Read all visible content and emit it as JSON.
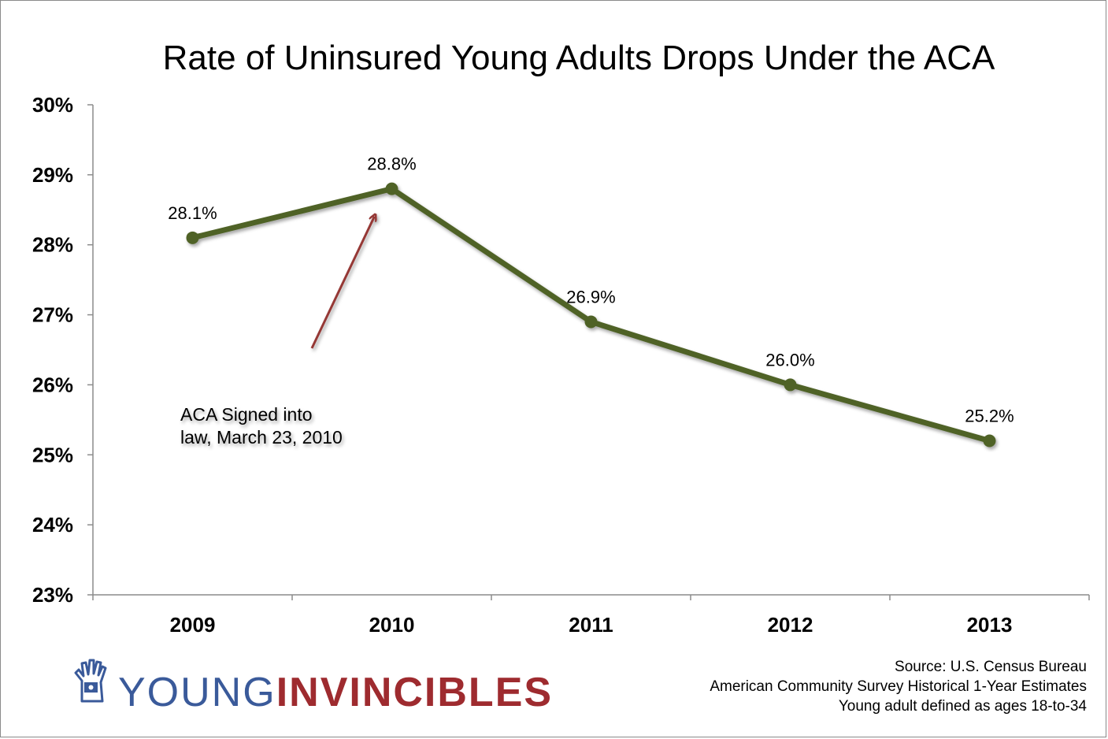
{
  "chart_data": {
    "type": "line",
    "title": "Rate of Uninsured Young Adults Drops Under the ACA",
    "categories": [
      "2009",
      "2010",
      "2011",
      "2012",
      "2013"
    ],
    "series": [
      {
        "values": [
          28.1,
          28.8,
          26.9,
          26.0,
          25.2
        ],
        "data_labels": [
          "28.1%",
          "28.8%",
          "26.9%",
          "26.0%",
          "25.2%"
        ],
        "color": "#4f6228"
      }
    ],
    "ylim": [
      23,
      30
    ],
    "yticks": [
      "30%",
      "29%",
      "28%",
      "27%",
      "26%",
      "25%",
      "24%",
      "23%"
    ],
    "grid": false,
    "annotation": {
      "lines": [
        "ACA Signed into",
        "law, March 23, 2010"
      ],
      "points_to": "2010",
      "arrow_color": "#953735"
    }
  },
  "source": {
    "lines": [
      "Source: U.S. Census Bureau",
      "American Community Survey Historical 1-Year Estimates",
      "Young adult defined as ages 18-to-34"
    ]
  },
  "logo": {
    "part1": "YOUNG",
    "part2": "INVINCIBLES",
    "icon": "raised-fist-hand-icon",
    "color1": "#3a5a9a",
    "color2": "#9e2b2f"
  }
}
